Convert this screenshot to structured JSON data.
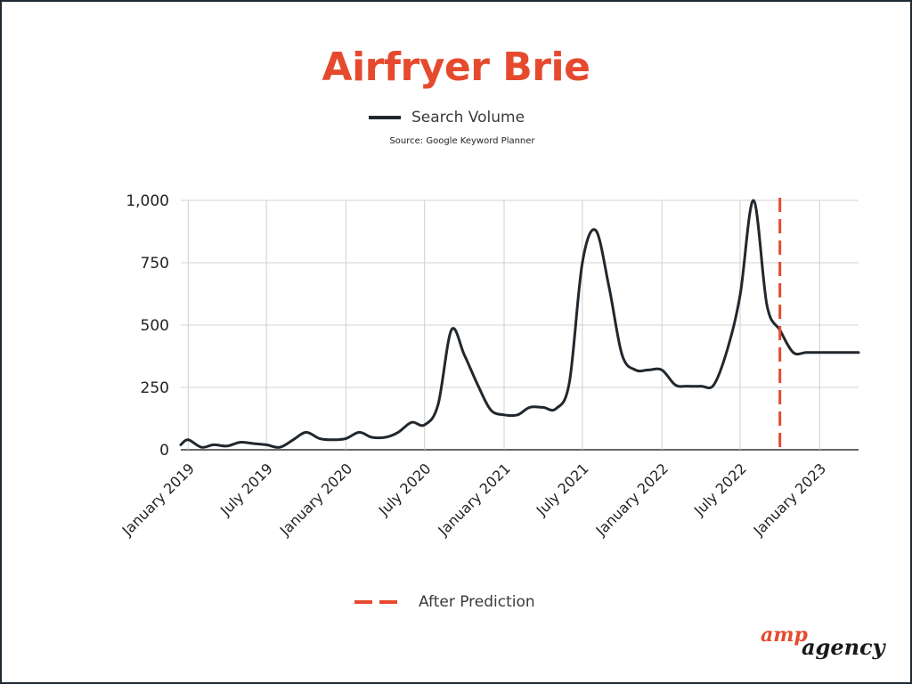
{
  "logo": {
    "part1": "amp",
    "part2": "agency"
  },
  "chart_data": {
    "type": "line",
    "title": "Airfryer Brie",
    "subtitle": "Source: Google Keyword Planner",
    "xlabel": "",
    "ylabel": "",
    "ylim": [
      0,
      1000
    ],
    "yticks": [
      0,
      250,
      500,
      750,
      1000
    ],
    "ytick_labels": [
      "0",
      "250",
      "500",
      "750",
      "1,000"
    ],
    "xlim": [
      "2018-12-15",
      "2023-04-01"
    ],
    "xticks": [
      "2019-01-01",
      "2019-07-01",
      "2020-01-01",
      "2020-07-01",
      "2021-01-01",
      "2021-07-01",
      "2022-01-01",
      "2022-07-01",
      "2023-01-01"
    ],
    "xtick_labels": [
      "January 2019",
      "July 2019",
      "January 2020",
      "July 2020",
      "January 2021",
      "July 2021",
      "January 2022",
      "July 2022",
      "January 2023"
    ],
    "grid": true,
    "legend_top": {
      "name": "Search Volume",
      "color": "#20272d"
    },
    "legend_bottom": {
      "name": "After Prediction",
      "color": "#e64a2e"
    },
    "series": [
      {
        "name": "Search Volume",
        "color": "#20272d",
        "x": [
          "2018-12-15",
          "2019-01-01",
          "2019-02-01",
          "2019-03-01",
          "2019-04-01",
          "2019-05-01",
          "2019-06-01",
          "2019-07-01",
          "2019-08-01",
          "2019-09-01",
          "2019-10-01",
          "2019-11-01",
          "2019-12-01",
          "2020-01-01",
          "2020-02-01",
          "2020-03-01",
          "2020-04-01",
          "2020-05-01",
          "2020-06-01",
          "2020-07-01",
          "2020-08-01",
          "2020-09-01",
          "2020-10-01",
          "2020-11-01",
          "2020-12-01",
          "2021-01-01",
          "2021-02-01",
          "2021-03-01",
          "2021-04-01",
          "2021-05-01",
          "2021-06-01",
          "2021-07-01",
          "2021-08-01",
          "2021-09-01",
          "2021-10-01",
          "2021-11-01",
          "2021-12-01",
          "2022-01-01",
          "2022-02-01",
          "2022-03-01",
          "2022-04-01",
          "2022-05-01",
          "2022-06-01",
          "2022-07-01",
          "2022-08-01",
          "2022-09-01",
          "2022-10-01",
          "2022-11-01",
          "2022-12-01",
          "2023-01-01",
          "2023-02-01",
          "2023-03-01",
          "2023-04-01"
        ],
        "y": [
          20,
          40,
          10,
          20,
          15,
          30,
          25,
          20,
          10,
          40,
          70,
          45,
          40,
          45,
          70,
          50,
          50,
          70,
          110,
          100,
          180,
          480,
          380,
          260,
          160,
          140,
          140,
          170,
          170,
          165,
          270,
          750,
          880,
          650,
          380,
          320,
          320,
          320,
          260,
          255,
          255,
          260,
          400,
          620,
          1000,
          580,
          480,
          390,
          390,
          390,
          390,
          390,
          390
        ]
      }
    ],
    "annotation": {
      "type": "vline",
      "x": "2022-10-01",
      "style": "dashed",
      "color": "#e64a2e"
    }
  }
}
